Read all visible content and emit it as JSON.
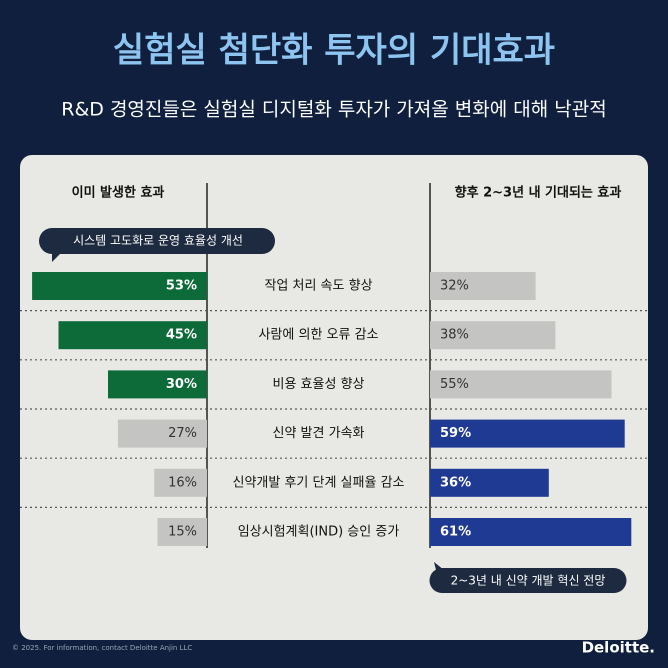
{
  "chart_data": {
    "type": "butterfly",
    "title": "실험실 첨단화 투자의 기대효과",
    "subtitle": "R&D 경영진들은 실험실 디지털화 투자가 가져올 변화에 대해 낙관적",
    "categories": [
      "작업 처리 속도 향상",
      "사람에 의한 오류 감소",
      "비용 효율성 향상",
      "신약 발견 가속화",
      "신약개발 후기 단계 실패율 감소",
      "임상시험계획(IND) 승인 증가"
    ],
    "series": [
      {
        "name": "이미 발생한 효과",
        "side": "left",
        "values": [
          53,
          45,
          30,
          27,
          16,
          15
        ],
        "value_labels": [
          "53%",
          "45%",
          "30%",
          "27%",
          "16%",
          "15%"
        ],
        "colors": [
          "#0d6b3a",
          "#0d6b3a",
          "#0d6b3a",
          "#c4c4c2",
          "#c4c4c2",
          "#c4c4c2"
        ]
      },
      {
        "name": "향후 2~3년 내 기대되는 효과",
        "side": "right",
        "values": [
          32,
          38,
          55,
          59,
          36,
          61
        ],
        "value_labels": [
          "32%",
          "38%",
          "55%",
          "59%",
          "36%",
          "61%"
        ],
        "colors": [
          "#c4c4c2",
          "#c4c4c2",
          "#c4c4c2",
          "#1f3a93",
          "#1f3a93",
          "#1f3a93"
        ]
      }
    ],
    "annotations": [
      "시스템 고도화로 운영 효율성 개선",
      "2~3년 내 신약 개발 혁신 전망"
    ]
  },
  "footer": {
    "note": "© 2025. For information, contact Deloitte Anjin LLC",
    "brand": "Deloitte."
  }
}
